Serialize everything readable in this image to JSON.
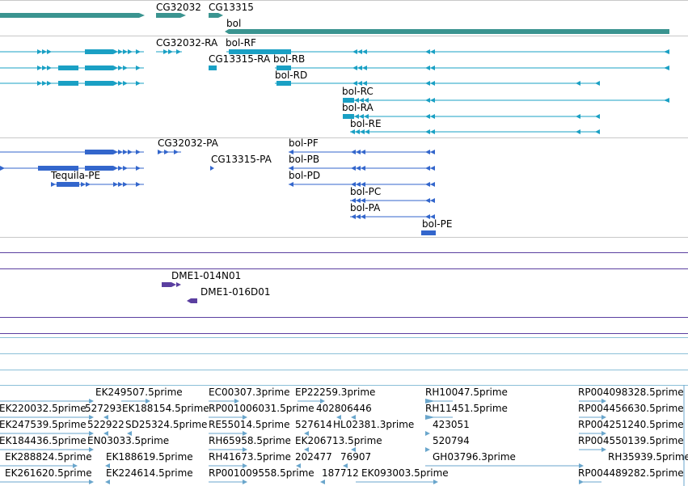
{
  "tracks": {
    "gene": {
      "name": "gene-track",
      "color": "#3a9490",
      "labels": [
        "CG32032",
        "CG13315",
        "bol"
      ]
    },
    "transcript": {
      "name": "transcript-track",
      "color": "#1aa0c4",
      "labels": [
        "CG32032-RA",
        "bol-RF",
        "CG13315-RA",
        "bol-RB",
        "bol-RD",
        "bol-RC",
        "bol-RA",
        "bol-RE"
      ]
    },
    "protein": {
      "name": "protein-track",
      "color": "#3366cc",
      "labels": [
        "CG32032-PA",
        "bol-PF",
        "CG13315-PA",
        "bol-PB",
        "Tequila-PE",
        "bol-PD",
        "bol-PC",
        "bol-PA",
        "bol-PE"
      ]
    },
    "probe": {
      "name": "probe-track",
      "color": "#5b3fa0",
      "labels": [
        "DME1-014N01",
        "DME1-016D01"
      ]
    },
    "est": {
      "name": "est-track",
      "color": "#6aa6cc",
      "labels": [
        "EK249507.5prime",
        "EC00307.3prime",
        "EP22259.3prime",
        "RH10047.5prime",
        "RP004098328.5prime",
        "EK220032.5prime",
        "527293",
        "EK188154.5prime",
        "RP001006031.5prime",
        "402806446",
        "RH11451.5prime",
        "RP004456630.5prime",
        "EK247539.5prime",
        "522922",
        "SD25324.5prime",
        "RE55014.5prime",
        "527614",
        "HL02381.3prime",
        "423051",
        "RP004251240.5prime",
        "EK184436.5prime",
        "EN03033.5prime",
        "RH65958.5prime",
        "EK206713.5prime",
        "520794",
        "RP004550139.5prime",
        "EK288824.5prime",
        "EK188619.5prime",
        "RH41673.5prime",
        "202477",
        "76907",
        "GH03796.3prime",
        "RH35939.5prime",
        "EK261620.5prime",
        "EK224614.5prime",
        "RP001009558.5prime",
        "187712",
        "EK093003.5prime",
        "RP004489282.5prime"
      ]
    }
  }
}
